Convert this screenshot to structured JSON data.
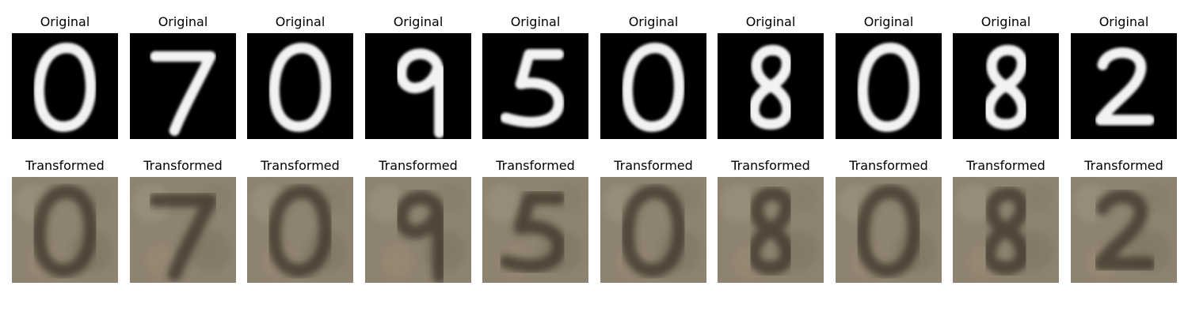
{
  "panels": [
    {
      "title": "Original",
      "digit": "0",
      "kind": "original"
    },
    {
      "title": "Original",
      "digit": "7",
      "kind": "original"
    },
    {
      "title": "Original",
      "digit": "0",
      "kind": "original"
    },
    {
      "title": "Original",
      "digit": "9",
      "kind": "original"
    },
    {
      "title": "Original",
      "digit": "5",
      "kind": "original"
    },
    {
      "title": "Original",
      "digit": "0",
      "kind": "original"
    },
    {
      "title": "Original",
      "digit": "8",
      "kind": "original"
    },
    {
      "title": "Original",
      "digit": "0",
      "kind": "original"
    },
    {
      "title": "Original",
      "digit": "8",
      "kind": "original"
    },
    {
      "title": "Original",
      "digit": "2",
      "kind": "original"
    },
    {
      "title": "Transformed",
      "digit": "0",
      "kind": "transformed"
    },
    {
      "title": "Transformed",
      "digit": "7",
      "kind": "transformed"
    },
    {
      "title": "Transformed",
      "digit": "0",
      "kind": "transformed"
    },
    {
      "title": "Transformed",
      "digit": "9",
      "kind": "transformed"
    },
    {
      "title": "Transformed",
      "digit": "5",
      "kind": "transformed"
    },
    {
      "title": "Transformed",
      "digit": "0",
      "kind": "transformed"
    },
    {
      "title": "Transformed",
      "digit": "8",
      "kind": "transformed"
    },
    {
      "title": "Transformed",
      "digit": "0",
      "kind": "transformed"
    },
    {
      "title": "Transformed",
      "digit": "8",
      "kind": "transformed"
    },
    {
      "title": "Transformed",
      "digit": "2",
      "kind": "transformed"
    }
  ],
  "colors": {
    "original_bg": "#000000",
    "original_stroke": "#f2f2f2",
    "transformed_bg": "#8e8270",
    "transformed_stroke": "#3b3127"
  }
}
